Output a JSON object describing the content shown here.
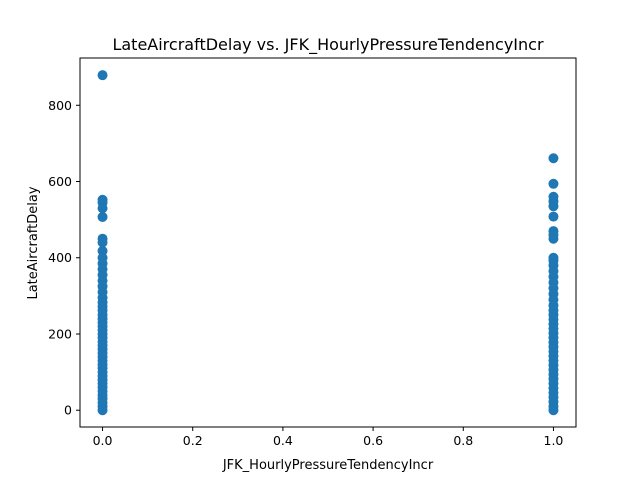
{
  "chart_data": {
    "type": "scatter",
    "title": "LateAircraftDelay vs. JFK_HourlyPressureTendencyIncr",
    "xlabel": "JFK_HourlyPressureTendencyIncr",
    "ylabel": "LateAircraftDelay",
    "xlim": [
      -0.05,
      1.05
    ],
    "ylim": [
      -44,
      924
    ],
    "xticks": [
      0.0,
      0.2,
      0.4,
      0.6,
      0.8,
      1.0
    ],
    "xtick_labels": [
      "0.0",
      "0.2",
      "0.4",
      "0.6",
      "0.8",
      "1.0"
    ],
    "yticks": [
      0,
      200,
      400,
      600,
      800
    ],
    "ytick_labels": [
      "0",
      "200",
      "400",
      "600",
      "800"
    ],
    "grid": false,
    "marker_color": "#1f77b4",
    "points": [
      {
        "x": 0,
        "y": 879
      },
      {
        "x": 0,
        "y": 552
      },
      {
        "x": 0,
        "y": 545
      },
      {
        "x": 0,
        "y": 530
      },
      {
        "x": 0,
        "y": 507
      },
      {
        "x": 0,
        "y": 450
      },
      {
        "x": 0,
        "y": 440
      },
      {
        "x": 0,
        "y": 418
      },
      {
        "x": 0,
        "y": 400
      },
      {
        "x": 0,
        "y": 385
      },
      {
        "x": 0,
        "y": 370
      },
      {
        "x": 0,
        "y": 355
      },
      {
        "x": 0,
        "y": 340
      },
      {
        "x": 0,
        "y": 325
      },
      {
        "x": 0,
        "y": 310
      },
      {
        "x": 0,
        "y": 295
      },
      {
        "x": 0,
        "y": 283
      },
      {
        "x": 0,
        "y": 272
      },
      {
        "x": 0,
        "y": 262
      },
      {
        "x": 0,
        "y": 250
      },
      {
        "x": 0,
        "y": 240
      },
      {
        "x": 0,
        "y": 230
      },
      {
        "x": 0,
        "y": 220
      },
      {
        "x": 0,
        "y": 210
      },
      {
        "x": 0,
        "y": 200
      },
      {
        "x": 0,
        "y": 190
      },
      {
        "x": 0,
        "y": 180
      },
      {
        "x": 0,
        "y": 170
      },
      {
        "x": 0,
        "y": 160
      },
      {
        "x": 0,
        "y": 150
      },
      {
        "x": 0,
        "y": 140
      },
      {
        "x": 0,
        "y": 130
      },
      {
        "x": 0,
        "y": 120
      },
      {
        "x": 0,
        "y": 110
      },
      {
        "x": 0,
        "y": 100
      },
      {
        "x": 0,
        "y": 90
      },
      {
        "x": 0,
        "y": 80
      },
      {
        "x": 0,
        "y": 70
      },
      {
        "x": 0,
        "y": 60
      },
      {
        "x": 0,
        "y": 50
      },
      {
        "x": 0,
        "y": 40
      },
      {
        "x": 0,
        "y": 30
      },
      {
        "x": 0,
        "y": 20
      },
      {
        "x": 0,
        "y": 10
      },
      {
        "x": 0,
        "y": 0
      },
      {
        "x": 1,
        "y": 661
      },
      {
        "x": 1,
        "y": 594
      },
      {
        "x": 1,
        "y": 560
      },
      {
        "x": 1,
        "y": 548
      },
      {
        "x": 1,
        "y": 535
      },
      {
        "x": 1,
        "y": 508
      },
      {
        "x": 1,
        "y": 470
      },
      {
        "x": 1,
        "y": 460
      },
      {
        "x": 1,
        "y": 450
      },
      {
        "x": 1,
        "y": 400
      },
      {
        "x": 1,
        "y": 392
      },
      {
        "x": 1,
        "y": 380
      },
      {
        "x": 1,
        "y": 365
      },
      {
        "x": 1,
        "y": 350
      },
      {
        "x": 1,
        "y": 335
      },
      {
        "x": 1,
        "y": 320
      },
      {
        "x": 1,
        "y": 305
      },
      {
        "x": 1,
        "y": 290
      },
      {
        "x": 1,
        "y": 275
      },
      {
        "x": 1,
        "y": 262
      },
      {
        "x": 1,
        "y": 250
      },
      {
        "x": 1,
        "y": 238
      },
      {
        "x": 1,
        "y": 226
      },
      {
        "x": 1,
        "y": 214
      },
      {
        "x": 1,
        "y": 202
      },
      {
        "x": 1,
        "y": 190
      },
      {
        "x": 1,
        "y": 178
      },
      {
        "x": 1,
        "y": 166
      },
      {
        "x": 1,
        "y": 154
      },
      {
        "x": 1,
        "y": 142
      },
      {
        "x": 1,
        "y": 130
      },
      {
        "x": 1,
        "y": 118
      },
      {
        "x": 1,
        "y": 106
      },
      {
        "x": 1,
        "y": 94
      },
      {
        "x": 1,
        "y": 82
      },
      {
        "x": 1,
        "y": 70
      },
      {
        "x": 1,
        "y": 58
      },
      {
        "x": 1,
        "y": 46
      },
      {
        "x": 1,
        "y": 34
      },
      {
        "x": 1,
        "y": 22
      },
      {
        "x": 1,
        "y": 10
      },
      {
        "x": 1,
        "y": 0
      }
    ]
  }
}
